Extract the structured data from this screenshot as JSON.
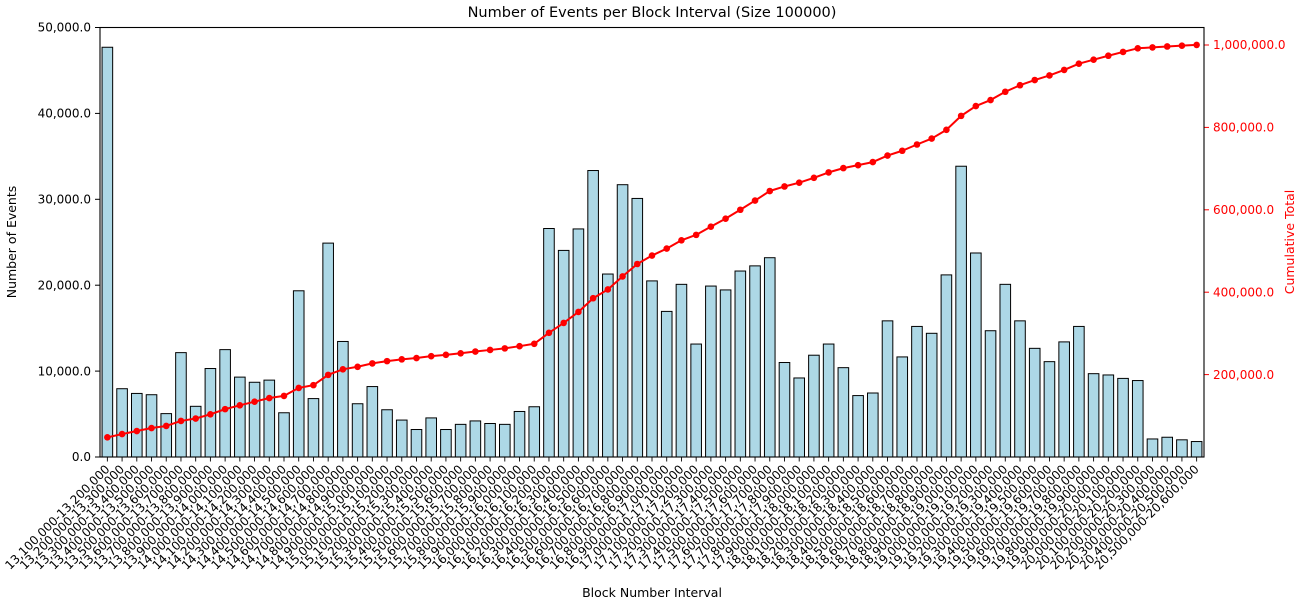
{
  "chart_data": {
    "type": "bar",
    "title": "Number of Events per Block Interval (Size 100000)",
    "xlabel": "Block Number Interval",
    "ylabel": "Number of Events",
    "ylabel_right": "Cumulative Total",
    "grid": false,
    "legend": "none",
    "ylim_left": [
      0,
      50000
    ],
    "ylim_right": [
      0,
      1042000
    ],
    "yticks_left": {
      "values": [
        0,
        10000,
        20000,
        30000,
        40000,
        50000
      ],
      "labels": [
        "0.0",
        "10,000.0",
        "20,000.0",
        "30,000.0",
        "40,000.0",
        "50,000.0"
      ]
    },
    "yticks_right": {
      "values": [
        200000,
        400000,
        600000,
        800000,
        1000000
      ],
      "labels": [
        "200,000.0",
        "400,000.0",
        "600,000.0",
        "800,000.0",
        "1,000,000.0"
      ]
    },
    "categories": [
      "13,100,000-13,200,000",
      "13,200,000-13,300,000",
      "13,300,000-13,400,000",
      "13,400,000-13,500,000",
      "13,500,000-13,600,000",
      "13,600,000-13,700,000",
      "13,700,000-13,800,000",
      "13,800,000-13,900,000",
      "13,900,000-14,000,000",
      "14,000,000-14,100,000",
      "14,100,000-14,200,000",
      "14,200,000-14,300,000",
      "14,300,000-14,400,000",
      "14,400,000-14,500,000",
      "14,500,000-14,600,000",
      "14,600,000-14,700,000",
      "14,700,000-14,800,000",
      "14,800,000-14,900,000",
      "14,900,000-15,000,000",
      "15,000,000-15,100,000",
      "15,100,000-15,200,000",
      "15,200,000-15,300,000",
      "15,300,000-15,400,000",
      "15,400,000-15,500,000",
      "15,500,000-15,600,000",
      "15,600,000-15,700,000",
      "15,700,000-15,800,000",
      "15,800,000-15,900,000",
      "15,900,000-16,000,000",
      "16,000,000-16,100,000",
      "16,100,000-16,200,000",
      "16,200,000-16,300,000",
      "16,300,000-16,400,000",
      "16,400,000-16,500,000",
      "16,500,000-16,600,000",
      "16,600,000-16,700,000",
      "16,700,000-16,800,000",
      "16,800,000-16,900,000",
      "16,900,000-17,000,000",
      "17,000,000-17,100,000",
      "17,100,000-17,200,000",
      "17,200,000-17,300,000",
      "17,300,000-17,400,000",
      "17,400,000-17,500,000",
      "17,500,000-17,600,000",
      "17,600,000-17,700,000",
      "17,700,000-17,800,000",
      "17,800,000-17,900,000",
      "17,900,000-18,000,000",
      "18,000,000-18,100,000",
      "18,100,000-18,200,000",
      "18,200,000-18,300,000",
      "18,300,000-18,400,000",
      "18,400,000-18,500,000",
      "18,500,000-18,600,000",
      "18,600,000-18,700,000",
      "18,700,000-18,800,000",
      "18,800,000-18,900,000",
      "18,900,000-19,000,000",
      "19,000,000-19,100,000",
      "19,100,000-19,200,000",
      "19,200,000-19,300,000",
      "19,300,000-19,400,000",
      "19,400,000-19,500,000",
      "19,500,000-19,600,000",
      "19,600,000-19,700,000",
      "19,700,000-19,800,000",
      "19,800,000-19,900,000",
      "19,900,000-20,000,000",
      "20,000,000-20,100,000",
      "20,100,000-20,200,000",
      "20,200,000-20,300,000",
      "20,300,000-20,400,000",
      "20,400,000-20,500,000",
      "20,500,000-20,600,000"
    ],
    "series": [
      {
        "name": "Number of Events",
        "type": "bar",
        "axis": "left",
        "color": "#add8e6",
        "edge_color": "#000000",
        "values": [
          47700,
          7950,
          7400,
          7250,
          5050,
          12150,
          5900,
          10300,
          12500,
          9300,
          8700,
          8950,
          5150,
          19350,
          6800,
          24900,
          13450,
          6200,
          8200,
          5500,
          4300,
          3200,
          4550,
          3200,
          3800,
          4200,
          3900,
          3800,
          5300,
          5850,
          26600,
          24050,
          26550,
          33350,
          21300,
          31700,
          30100,
          20500,
          16950,
          20100,
          13150,
          19900,
          19450,
          21650,
          22250,
          23200,
          11000,
          9200,
          11850,
          13150,
          10400,
          7150,
          7450,
          15850,
          11650,
          15200,
          14400,
          21200,
          33850,
          23750,
          14700,
          20100,
          15850,
          12650,
          11100,
          13400,
          15200,
          9700,
          9550,
          9150,
          8900,
          2100,
          2300,
          2000,
          1800
        ]
      },
      {
        "name": "Cumulative Total",
        "type": "line",
        "axis": "right",
        "color": "#ff0000",
        "marker": "circle",
        "values": [
          47700,
          55650,
          63050,
          70300,
          75350,
          87500,
          93400,
          103700,
          116200,
          125500,
          134200,
          143150,
          148300,
          167650,
          174450,
          199350,
          212800,
          219000,
          227200,
          232700,
          237000,
          240200,
          244750,
          247950,
          251750,
          255950,
          259850,
          263650,
          268950,
          274800,
          301400,
          325450,
          352000,
          385350,
          406650,
          438350,
          468450,
          488950,
          505900,
          526000,
          539150,
          559050,
          578500,
          600150,
          622400,
          645600,
          656600,
          665800,
          677650,
          690800,
          701200,
          708350,
          715800,
          731650,
          743300,
          758500,
          772900,
          794100,
          827950,
          851700,
          866400,
          886500,
          902350,
          915000,
          926100,
          939500,
          954700,
          964400,
          973950,
          983100,
          992000,
          994100,
          996400,
          998400,
          1000200
        ]
      }
    ]
  },
  "colors": {
    "background": "#ffffff",
    "bar_fill": "#add8e6",
    "bar_edge": "#000000",
    "line_red": "#ff0000",
    "axis_black": "#000000",
    "right_axis_red": "#ff0000"
  }
}
